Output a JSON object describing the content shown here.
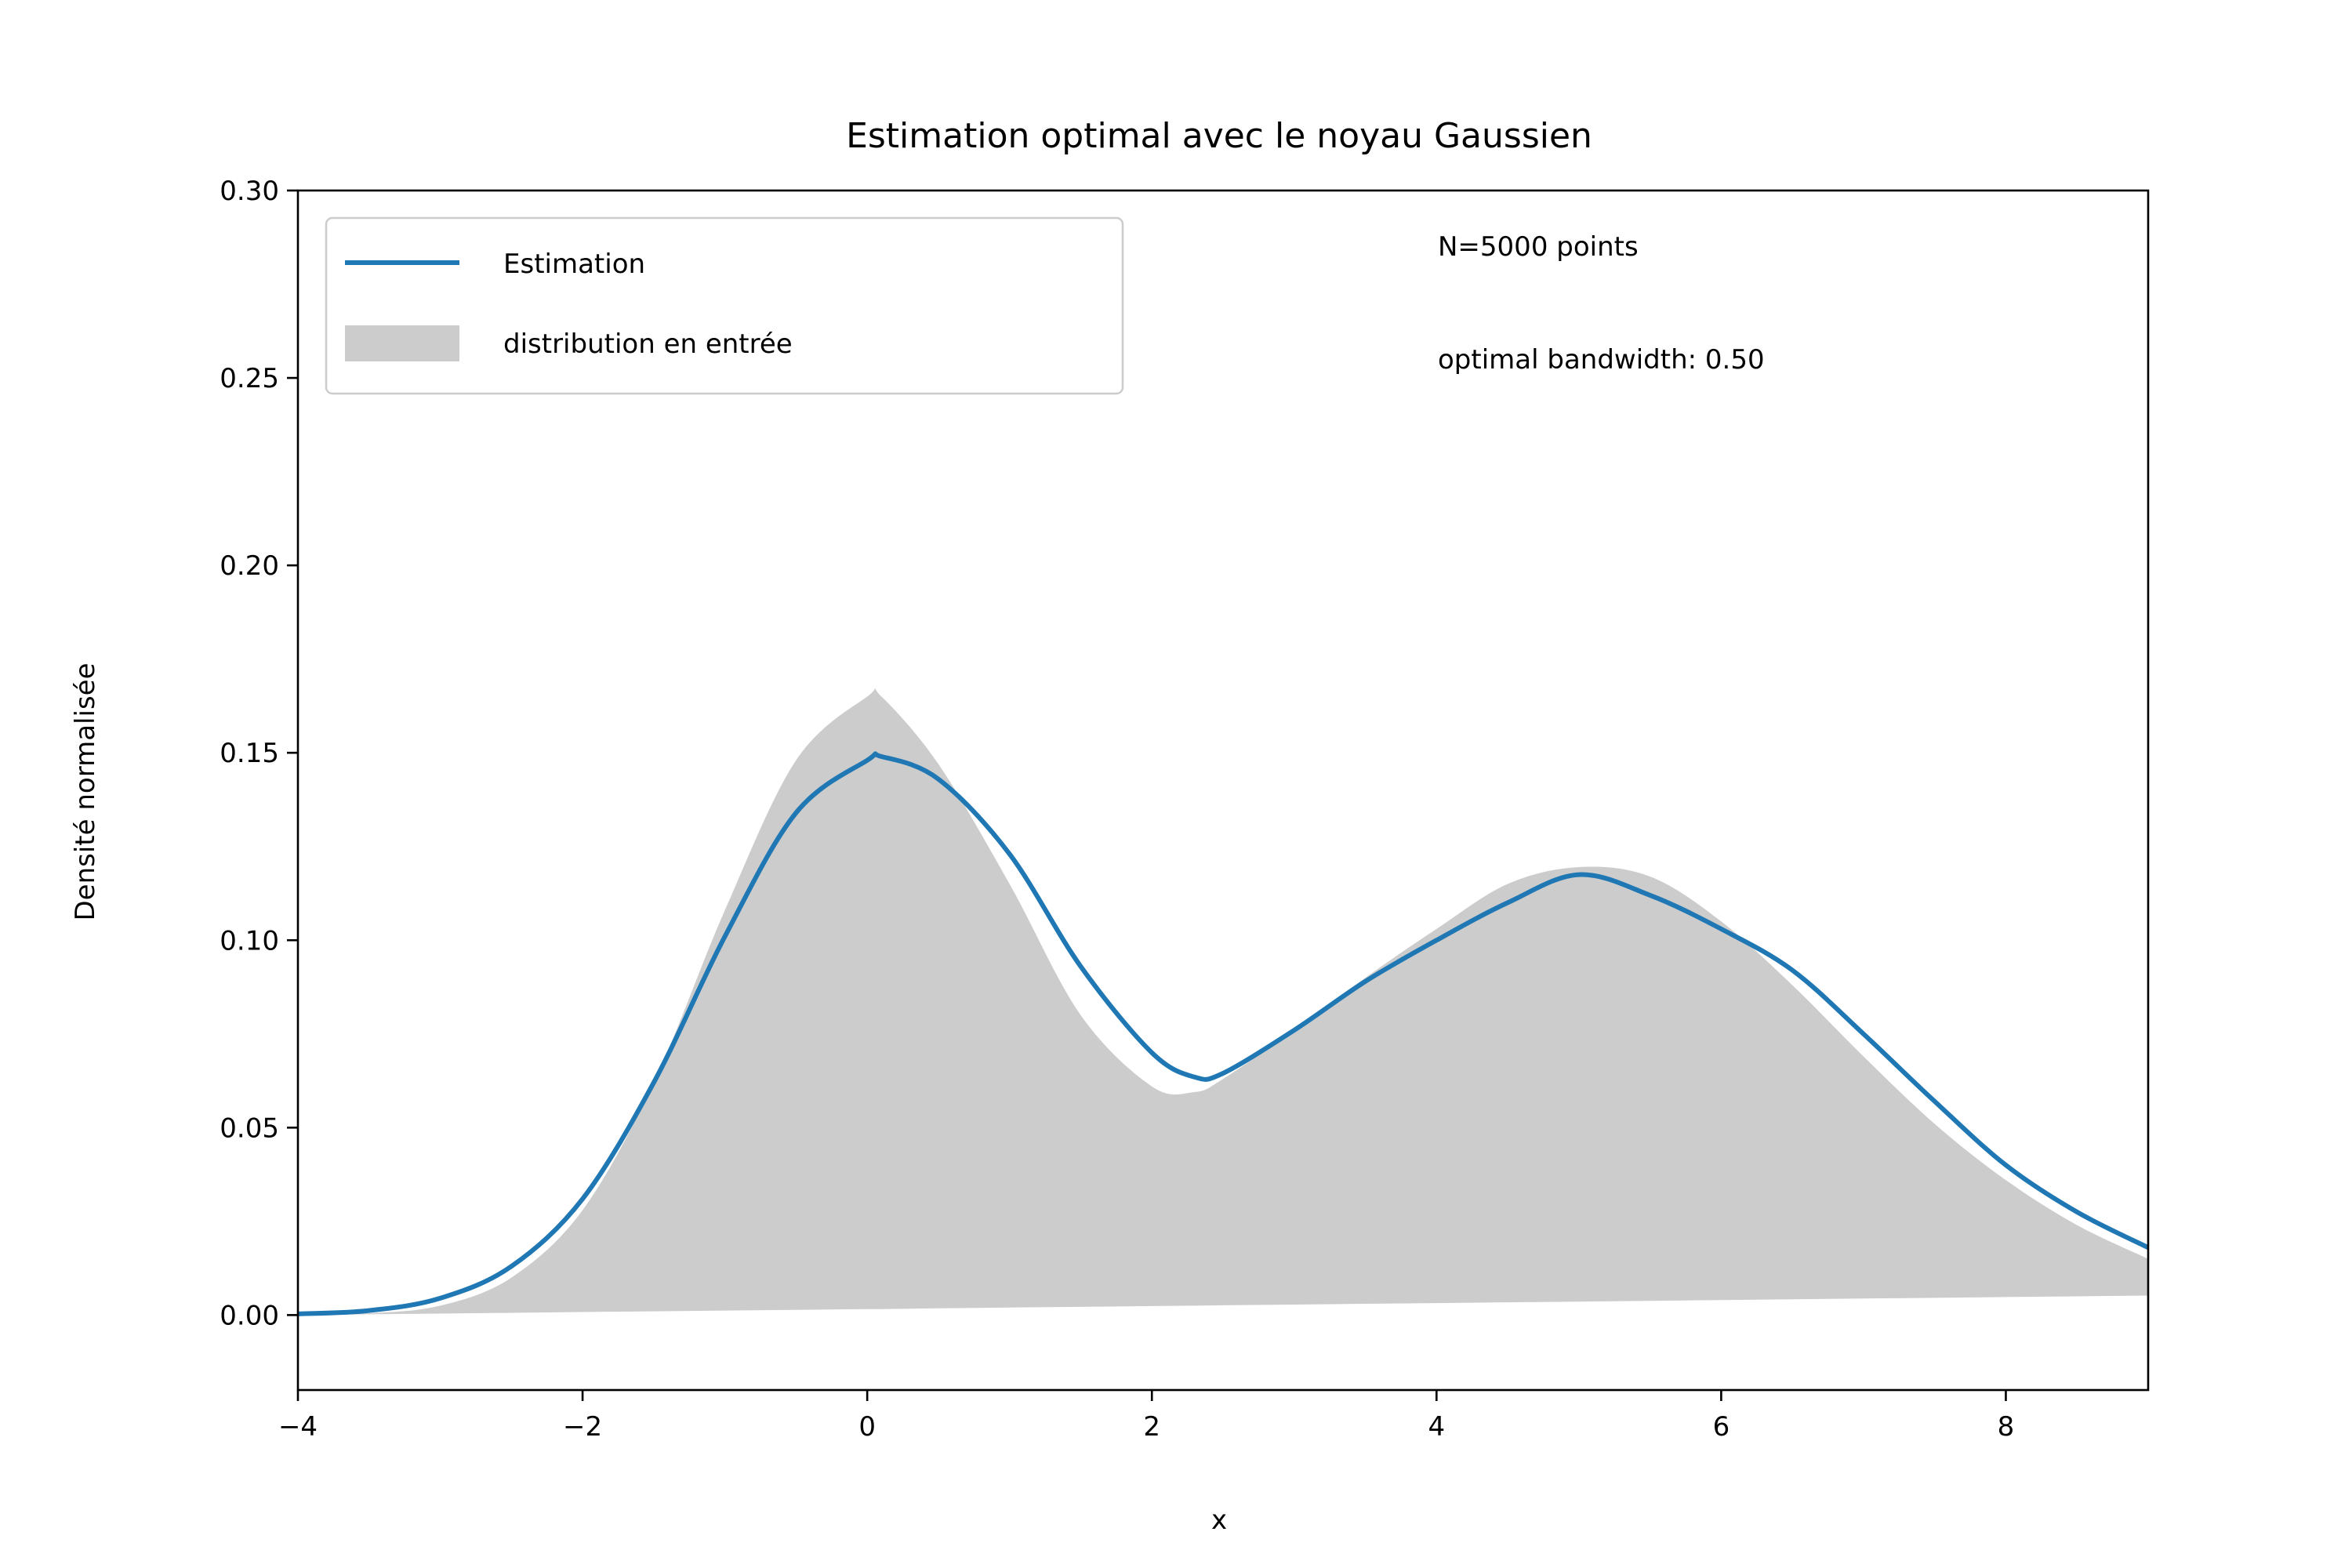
{
  "chart_data": {
    "type": "line",
    "title": "Estimation optimal avec le noyau Gaussien",
    "xlabel": "x",
    "ylabel": "Densité normalisée",
    "xlim": [
      -4,
      9
    ],
    "ylim": [
      -0.02,
      0.3
    ],
    "xticks": [
      -4,
      -2,
      0,
      2,
      4,
      6,
      8
    ],
    "xtick_labels": [
      "−4",
      "−2",
      "0",
      "2",
      "4",
      "6",
      "8"
    ],
    "yticks": [
      0.0,
      0.05,
      0.1,
      0.15,
      0.2,
      0.25,
      0.3
    ],
    "ytick_labels": [
      "0.00",
      "0.05",
      "0.10",
      "0.15",
      "0.20",
      "0.25",
      "0.30"
    ],
    "grid": false,
    "legend_position": "top-left",
    "annotations": [
      "N=5000 points",
      "optimal bandwidth: 0.50"
    ],
    "series": [
      {
        "name": "Estimation",
        "kind": "line",
        "color": "#1f77b4",
        "x": [
          -4.0,
          -3.5,
          -3.0,
          -2.5,
          -2.0,
          -1.5,
          -1.0,
          -0.5,
          0.0,
          0.1,
          0.5,
          1.0,
          1.5,
          2.0,
          2.3,
          2.5,
          3.0,
          3.5,
          4.0,
          4.5,
          5.0,
          5.5,
          6.0,
          6.5,
          7.0,
          7.5,
          8.0,
          8.5,
          9.0
        ],
        "y": [
          0.0003,
          0.0012,
          0.0045,
          0.013,
          0.031,
          0.062,
          0.101,
          0.134,
          0.148,
          0.149,
          0.143,
          0.123,
          0.093,
          0.07,
          0.0635,
          0.0645,
          0.076,
          0.089,
          0.1,
          0.11,
          0.1175,
          0.112,
          0.103,
          0.092,
          0.075,
          0.057,
          0.04,
          0.0275,
          0.018
        ]
      },
      {
        "name": "distribution en entrée",
        "kind": "area",
        "color": "#cccccc",
        "x": [
          -4.0,
          -3.5,
          -3.0,
          -2.5,
          -2.0,
          -1.5,
          -1.0,
          -0.5,
          0.0,
          0.1,
          0.5,
          1.0,
          1.5,
          2.0,
          2.3,
          2.5,
          3.0,
          3.5,
          4.0,
          4.5,
          5.0,
          5.5,
          6.0,
          6.5,
          7.0,
          7.5,
          8.0,
          8.5,
          9.0
        ],
        "y": [
          0.0001,
          0.0005,
          0.0025,
          0.01,
          0.028,
          0.062,
          0.108,
          0.148,
          0.165,
          0.165,
          0.147,
          0.115,
          0.08,
          0.061,
          0.0595,
          0.063,
          0.076,
          0.09,
          0.103,
          0.115,
          0.1195,
          0.117,
          0.105,
          0.088,
          0.069,
          0.051,
          0.036,
          0.024,
          0.015
        ],
        "y_lower": [
          0.0,
          0.0002,
          0.0004,
          0.0006,
          0.0008,
          0.001,
          0.0012,
          0.0014,
          0.0016,
          0.0016,
          0.0018,
          0.002,
          0.0022,
          0.0024,
          0.0025,
          0.0026,
          0.0028,
          0.003,
          0.0032,
          0.0034,
          0.0036,
          0.0038,
          0.004,
          0.0042,
          0.0044,
          0.0046,
          0.0048,
          0.005,
          0.0052
        ]
      }
    ]
  }
}
